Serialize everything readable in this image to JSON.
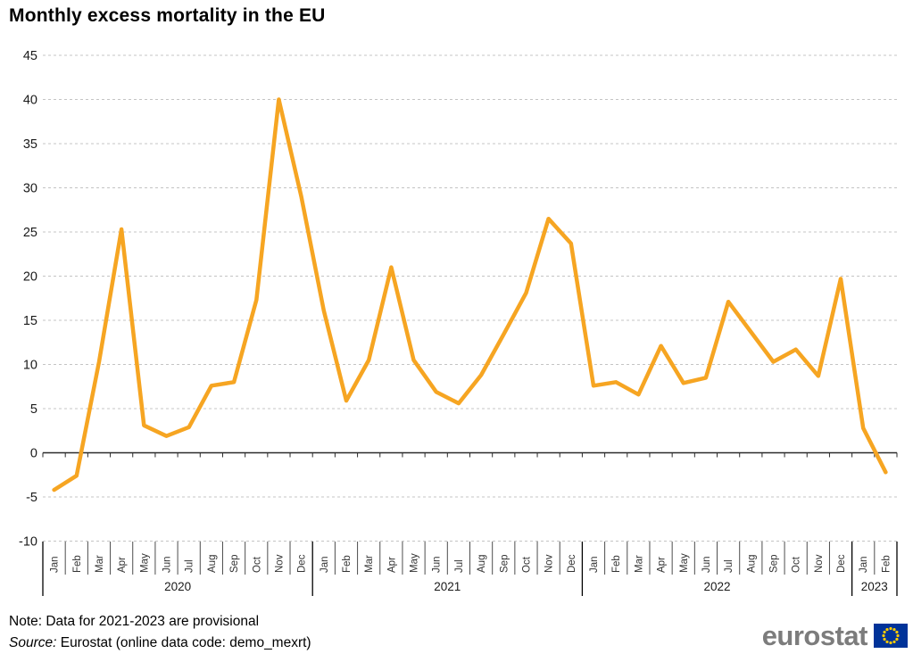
{
  "page": {
    "title": "Monthly excess mortality in the EU",
    "note": "Note: Data for 2021-2023 are provisional",
    "source_label": "Source:",
    "source_text": " Eurostat (online data code: demo_mexrt)",
    "logo_text": "eurostat"
  },
  "chart_data": {
    "type": "line",
    "title": "Monthly excess mortality in the EU",
    "xlabel": "",
    "ylabel": "",
    "unit": "percent excess mortality",
    "ylim": [
      -10,
      45
    ],
    "y_ticks": [
      45,
      40,
      35,
      30,
      25,
      20,
      15,
      10,
      5,
      0,
      -5,
      -10
    ],
    "grid": "horizontal-dashed",
    "legend_position": "none",
    "line_color": "#F6A522",
    "years": [
      {
        "label": "2020",
        "months": [
          "Jan",
          "Feb",
          "Mar",
          "Apr",
          "May",
          "Jun",
          "Jul",
          "Aug",
          "Sep",
          "Oct",
          "Nov",
          "Dec"
        ],
        "values": [
          -4.2,
          -2.6,
          10.3,
          25.3,
          3.1,
          1.9,
          2.9,
          7.6,
          8.0,
          17.3,
          40.0,
          29.0
        ]
      },
      {
        "label": "2021",
        "months": [
          "Jan",
          "Feb",
          "Mar",
          "Apr",
          "May",
          "Jun",
          "Jul",
          "Aug",
          "Sep",
          "Oct",
          "Nov",
          "Dec"
        ],
        "values": [
          16.1,
          5.9,
          10.5,
          21.0,
          10.5,
          6.9,
          5.6,
          8.8,
          13.4,
          18.1,
          26.5,
          23.7
        ]
      },
      {
        "label": "2022",
        "months": [
          "Jan",
          "Feb",
          "Mar",
          "Apr",
          "May",
          "Jun",
          "Jul",
          "Aug",
          "Sep",
          "Oct",
          "Nov",
          "Dec"
        ],
        "values": [
          7.6,
          8.0,
          6.6,
          12.1,
          7.9,
          8.5,
          17.1,
          13.7,
          10.3,
          11.7,
          8.7,
          19.7
        ]
      },
      {
        "label": "2023",
        "months": [
          "Jan",
          "Feb"
        ],
        "values": [
          2.8,
          -2.2
        ]
      }
    ]
  },
  "logo": {
    "flag_blue": "#003399",
    "star_yellow": "#FFCC00",
    "wordmark_gray": "#7C7C7C"
  }
}
